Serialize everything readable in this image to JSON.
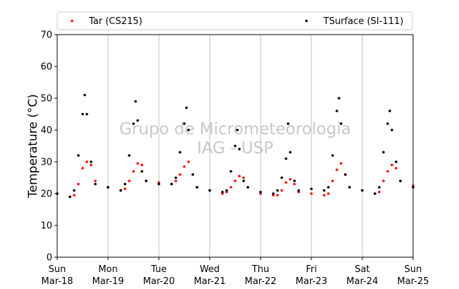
{
  "chart_data": {
    "type": "scatter",
    "ylabel": "Temperature (°C)",
    "xlabel": "",
    "ylim": [
      0,
      70
    ],
    "yticks": [
      0,
      10,
      20,
      30,
      40,
      50,
      60,
      70
    ],
    "xlim": [
      "2018-03-18",
      "2018-03-25"
    ],
    "x_ticks": [
      {
        "date": "2018-03-18",
        "day": "Sun",
        "label": "Mar-18"
      },
      {
        "date": "2018-03-19",
        "day": "Mon",
        "label": "Mar-19"
      },
      {
        "date": "2018-03-20",
        "day": "Tue",
        "label": "Mar-20"
      },
      {
        "date": "2018-03-21",
        "day": "Wed",
        "label": "Mar-21"
      },
      {
        "date": "2018-03-22",
        "day": "Thu",
        "label": "Mar-22"
      },
      {
        "date": "2018-03-23",
        "day": "Fri",
        "label": "Mar-23"
      },
      {
        "date": "2018-03-24",
        "day": "Sat",
        "label": "Mar-24"
      },
      {
        "date": "2018-03-25",
        "day": "Sun",
        "label": "Mar-25"
      }
    ],
    "grid": "vertical-only",
    "legend_position": "top",
    "watermark": [
      "Grupo de Micrometeorologia",
      "IAG - USP"
    ],
    "series": [
      {
        "name": "Tar (CS215)",
        "color": "#ff0000",
        "x": [
          "2018-03-18 00:00",
          "2018-03-18 06:00",
          "2018-03-18 08:00",
          "2018-03-18 10:00",
          "2018-03-18 12:00",
          "2018-03-18 14:00",
          "2018-03-18 16:00",
          "2018-03-18 18:00",
          "2018-03-19 00:00",
          "2018-03-19 06:00",
          "2018-03-19 08:00",
          "2018-03-19 10:00",
          "2018-03-19 12:00",
          "2018-03-19 14:00",
          "2018-03-19 16:00",
          "2018-03-19 18:00",
          "2018-03-20 00:00",
          "2018-03-20 06:00",
          "2018-03-20 08:00",
          "2018-03-20 10:00",
          "2018-03-20 12:00",
          "2018-03-20 14:00",
          "2018-03-20 16:00",
          "2018-03-20 18:00",
          "2018-03-21 00:00",
          "2018-03-21 06:00",
          "2018-03-21 08:00",
          "2018-03-21 10:00",
          "2018-03-21 12:00",
          "2018-03-21 14:00",
          "2018-03-21 16:00",
          "2018-03-21 18:00",
          "2018-03-22 00:00",
          "2018-03-22 06:00",
          "2018-03-22 08:00",
          "2018-03-22 10:00",
          "2018-03-22 12:00",
          "2018-03-22 14:00",
          "2018-03-22 16:00",
          "2018-03-22 18:00",
          "2018-03-23 00:00",
          "2018-03-23 06:00",
          "2018-03-23 08:00",
          "2018-03-23 10:00",
          "2018-03-23 12:00",
          "2018-03-23 14:00",
          "2018-03-23 16:00",
          "2018-03-23 18:00",
          "2018-03-24 00:00",
          "2018-03-24 06:00",
          "2018-03-24 08:00",
          "2018-03-24 10:00",
          "2018-03-24 12:00",
          "2018-03-24 14:00",
          "2018-03-24 16:00",
          "2018-03-24 18:00",
          "2018-03-25 00:00"
        ],
        "y": [
          20,
          19,
          19.5,
          23,
          28,
          30,
          29,
          24,
          22,
          21,
          21.5,
          24,
          27,
          29.5,
          29,
          24,
          23.5,
          23,
          24,
          26,
          28.5,
          30,
          26,
          22,
          21,
          20,
          20.5,
          22,
          24,
          25.5,
          25,
          22,
          20,
          19.5,
          19.5,
          21,
          23.5,
          24.5,
          23,
          20.5,
          20,
          19.5,
          20,
          24,
          27.5,
          29.5,
          26,
          22,
          21,
          20,
          20.5,
          24,
          27,
          29,
          28,
          24,
          22.5
        ]
      },
      {
        "name": "TSurface (SI-111)",
        "color": "#000000",
        "x": [
          "2018-03-18 00:00",
          "2018-03-18 06:00",
          "2018-03-18 08:00",
          "2018-03-18 10:00",
          "2018-03-18 12:00",
          "2018-03-18 13:00",
          "2018-03-18 14:00",
          "2018-03-18 16:00",
          "2018-03-18 18:00",
          "2018-03-19 00:00",
          "2018-03-19 06:00",
          "2018-03-19 08:00",
          "2018-03-19 10:00",
          "2018-03-19 12:00",
          "2018-03-19 13:00",
          "2018-03-19 14:00",
          "2018-03-19 16:00",
          "2018-03-19 18:00",
          "2018-03-20 00:00",
          "2018-03-20 06:00",
          "2018-03-20 08:00",
          "2018-03-20 10:00",
          "2018-03-20 12:00",
          "2018-03-20 13:00",
          "2018-03-20 14:00",
          "2018-03-20 16:00",
          "2018-03-20 18:00",
          "2018-03-21 00:00",
          "2018-03-21 06:00",
          "2018-03-21 08:00",
          "2018-03-21 10:00",
          "2018-03-21 12:00",
          "2018-03-21 13:00",
          "2018-03-21 14:00",
          "2018-03-21 16:00",
          "2018-03-21 18:00",
          "2018-03-22 00:00",
          "2018-03-22 06:00",
          "2018-03-22 08:00",
          "2018-03-22 10:00",
          "2018-03-22 12:00",
          "2018-03-22 13:00",
          "2018-03-22 14:00",
          "2018-03-22 16:00",
          "2018-03-22 18:00",
          "2018-03-23 00:00",
          "2018-03-23 06:00",
          "2018-03-23 08:00",
          "2018-03-23 10:00",
          "2018-03-23 12:00",
          "2018-03-23 13:00",
          "2018-03-23 14:00",
          "2018-03-23 16:00",
          "2018-03-23 18:00",
          "2018-03-24 00:00",
          "2018-03-24 06:00",
          "2018-03-24 08:00",
          "2018-03-24 10:00",
          "2018-03-24 12:00",
          "2018-03-24 13:00",
          "2018-03-24 14:00",
          "2018-03-24 16:00",
          "2018-03-24 18:00",
          "2018-03-25 00:00"
        ],
        "y": [
          20,
          19,
          21,
          32,
          45,
          51,
          45,
          30,
          23,
          22,
          21,
          23,
          32,
          42,
          49,
          43,
          27,
          24,
          23,
          23,
          25,
          33,
          42,
          47,
          40,
          26,
          22,
          21,
          20.5,
          21,
          27,
          35,
          40,
          34,
          24,
          22,
          20.5,
          20,
          21,
          25,
          31,
          42,
          33,
          24,
          21,
          21.5,
          21,
          22,
          32,
          46,
          50,
          42,
          26,
          22,
          21,
          20,
          22,
          33,
          42,
          46,
          40,
          30,
          24,
          22
        ]
      }
    ]
  }
}
